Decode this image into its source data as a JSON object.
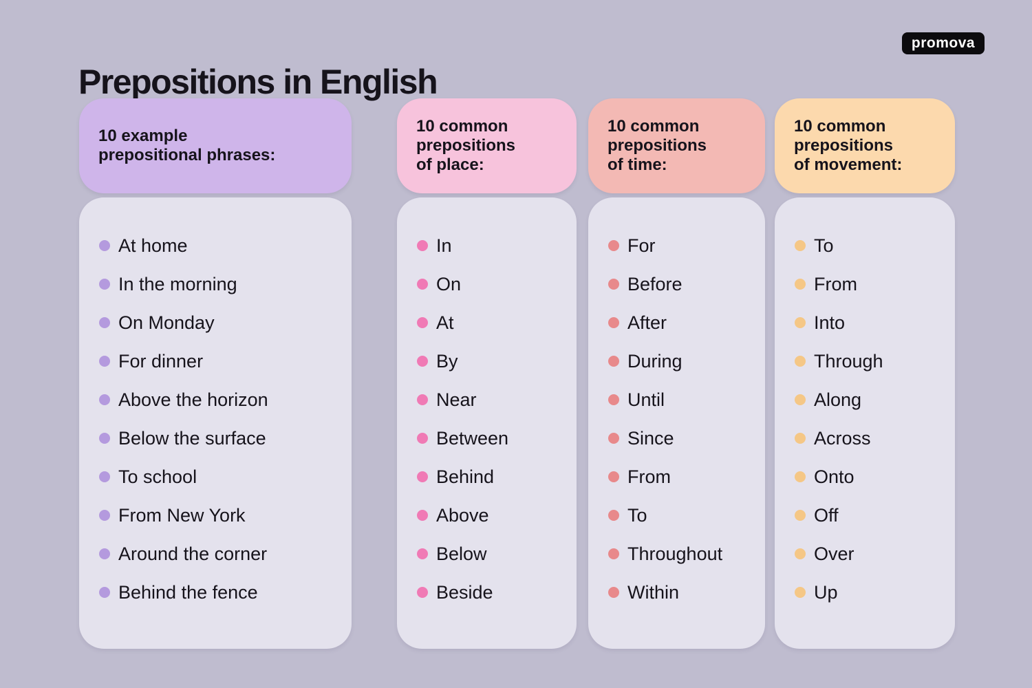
{
  "page": {
    "title": "Prepositions in English",
    "logo_text": "promova",
    "background_color": "#bfbccf",
    "card_body_color": "#e4e2ed",
    "text_color": "#16131b"
  },
  "columns": [
    {
      "id": "prepositional-phrases",
      "header_lines": [
        "10 example",
        "prepositional phrases:"
      ],
      "header_bg": "#cfb5ea",
      "bullet_color": "#b49ade",
      "items": [
        "At home",
        "In the morning",
        "On Monday",
        "For dinner",
        "Above the horizon",
        "Below the surface",
        "To school",
        "From New York",
        "Around the corner",
        "Behind the fence"
      ]
    },
    {
      "id": "prepositions-of-place",
      "header_lines": [
        "10 common",
        "prepositions",
        "of place:"
      ],
      "header_bg": "#f7c3dc",
      "bullet_color": "#f07ab5",
      "items": [
        "In",
        "On",
        "At",
        "By",
        "Near",
        "Between",
        "Behind",
        "Above",
        "Below",
        "Beside"
      ]
    },
    {
      "id": "prepositions-of-time",
      "header_lines": [
        "10 common",
        "prepositions",
        "of time:"
      ],
      "header_bg": "#f3b9b4",
      "bullet_color": "#e8898b",
      "items": [
        "For",
        "Before",
        "After",
        "During",
        "Until",
        "Since",
        "From",
        "To",
        "Throughout",
        "Within"
      ]
    },
    {
      "id": "prepositions-of-movement",
      "header_lines": [
        "10 common",
        "prepositions",
        "of movement:"
      ],
      "header_bg": "#fcd9ad",
      "bullet_color": "#f5c786",
      "items": [
        "To",
        "From",
        "Into",
        "Through",
        "Along",
        "Across",
        "Onto",
        "Off",
        "Over",
        "Up"
      ]
    }
  ]
}
